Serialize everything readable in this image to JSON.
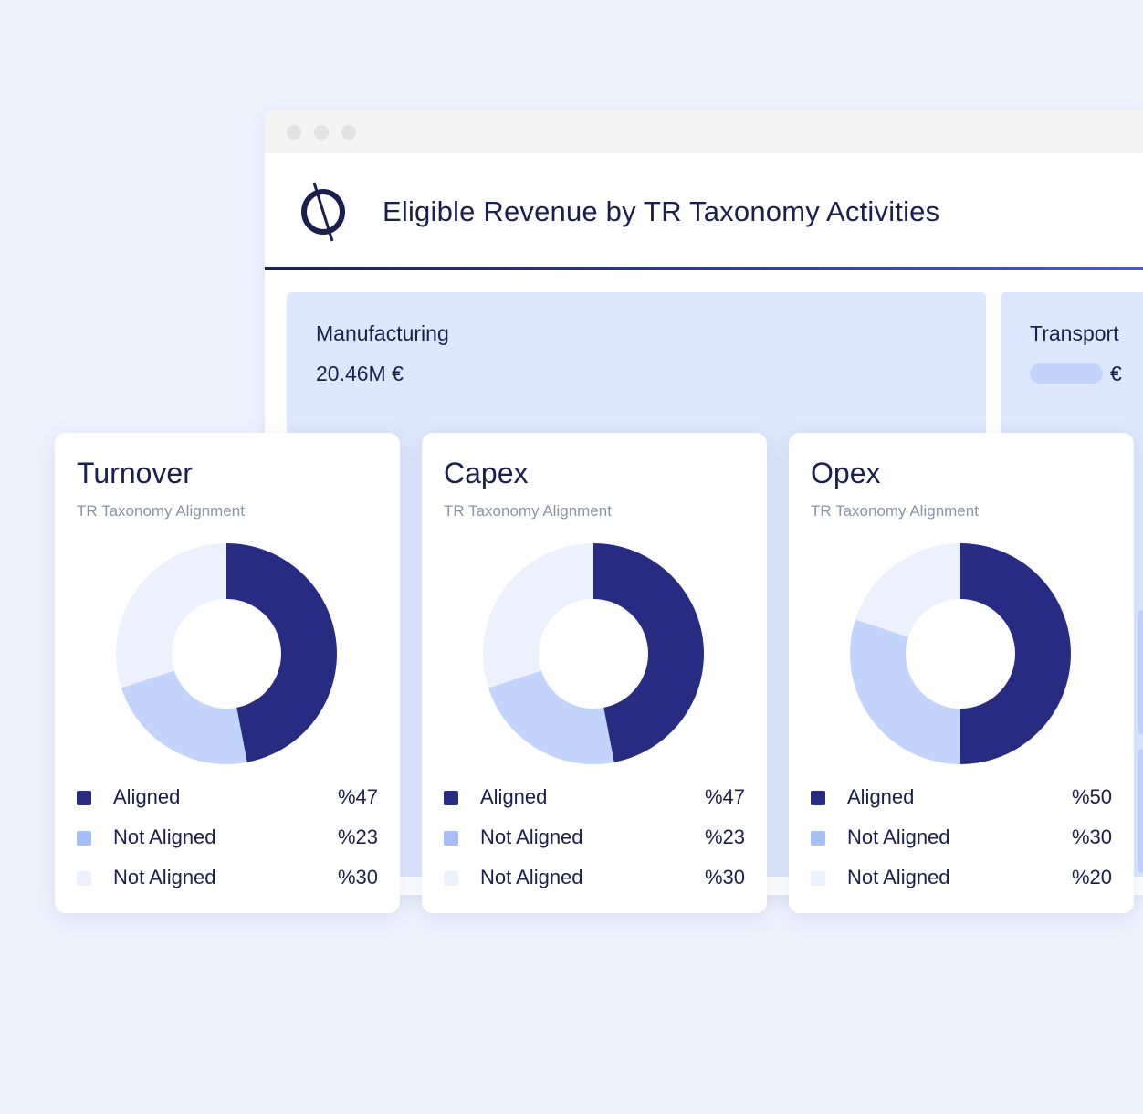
{
  "window": {
    "title": "Eligible Revenue by TR Taxonomy Activities",
    "logo": "brand-logo-icon"
  },
  "colors": {
    "aligned": "#272b82",
    "not_aligned_mid": "#c2d4fb",
    "not_aligned_light": "#ecf1fd",
    "sector_bg": "#dde7fd"
  },
  "sectors": [
    {
      "name": "Manufacturing",
      "value": "20.46M €"
    },
    {
      "name": "Transport",
      "value": "€"
    }
  ],
  "cards": [
    {
      "title": "Turnover",
      "subtitle": "TR Taxonomy Alignment",
      "legend": [
        {
          "label": "Aligned",
          "value": "%47"
        },
        {
          "label": "Not Aligned",
          "value": "%23"
        },
        {
          "label": "Not Aligned",
          "value": "%30"
        }
      ]
    },
    {
      "title": "Capex",
      "subtitle": "TR Taxonomy Alignment",
      "legend": [
        {
          "label": "Aligned",
          "value": "%47"
        },
        {
          "label": "Not Aligned",
          "value": "%23"
        },
        {
          "label": "Not Aligned",
          "value": "%30"
        }
      ]
    },
    {
      "title": "Opex",
      "subtitle": "TR Taxonomy Alignment",
      "legend": [
        {
          "label": "Aligned",
          "value": "%50"
        },
        {
          "label": "Not Aligned",
          "value": "%30"
        },
        {
          "label": "Not Aligned",
          "value": "%20"
        }
      ]
    }
  ],
  "chart_data": [
    {
      "type": "pie",
      "title": "Turnover",
      "labels": [
        "Aligned",
        "Not Aligned",
        "Not Aligned"
      ],
      "values": [
        47,
        23,
        30
      ],
      "colors": [
        "#272b82",
        "#c2d4fb",
        "#ecf1fd"
      ]
    },
    {
      "type": "pie",
      "title": "Capex",
      "labels": [
        "Aligned",
        "Not Aligned",
        "Not Aligned"
      ],
      "values": [
        47,
        23,
        30
      ],
      "colors": [
        "#272b82",
        "#c2d4fb",
        "#ecf1fd"
      ]
    },
    {
      "type": "pie",
      "title": "Opex",
      "labels": [
        "Aligned",
        "Not Aligned",
        "Not Aligned"
      ],
      "values": [
        50,
        30,
        20
      ],
      "colors": [
        "#272b82",
        "#c2d4fb",
        "#ecf1fd"
      ]
    }
  ]
}
